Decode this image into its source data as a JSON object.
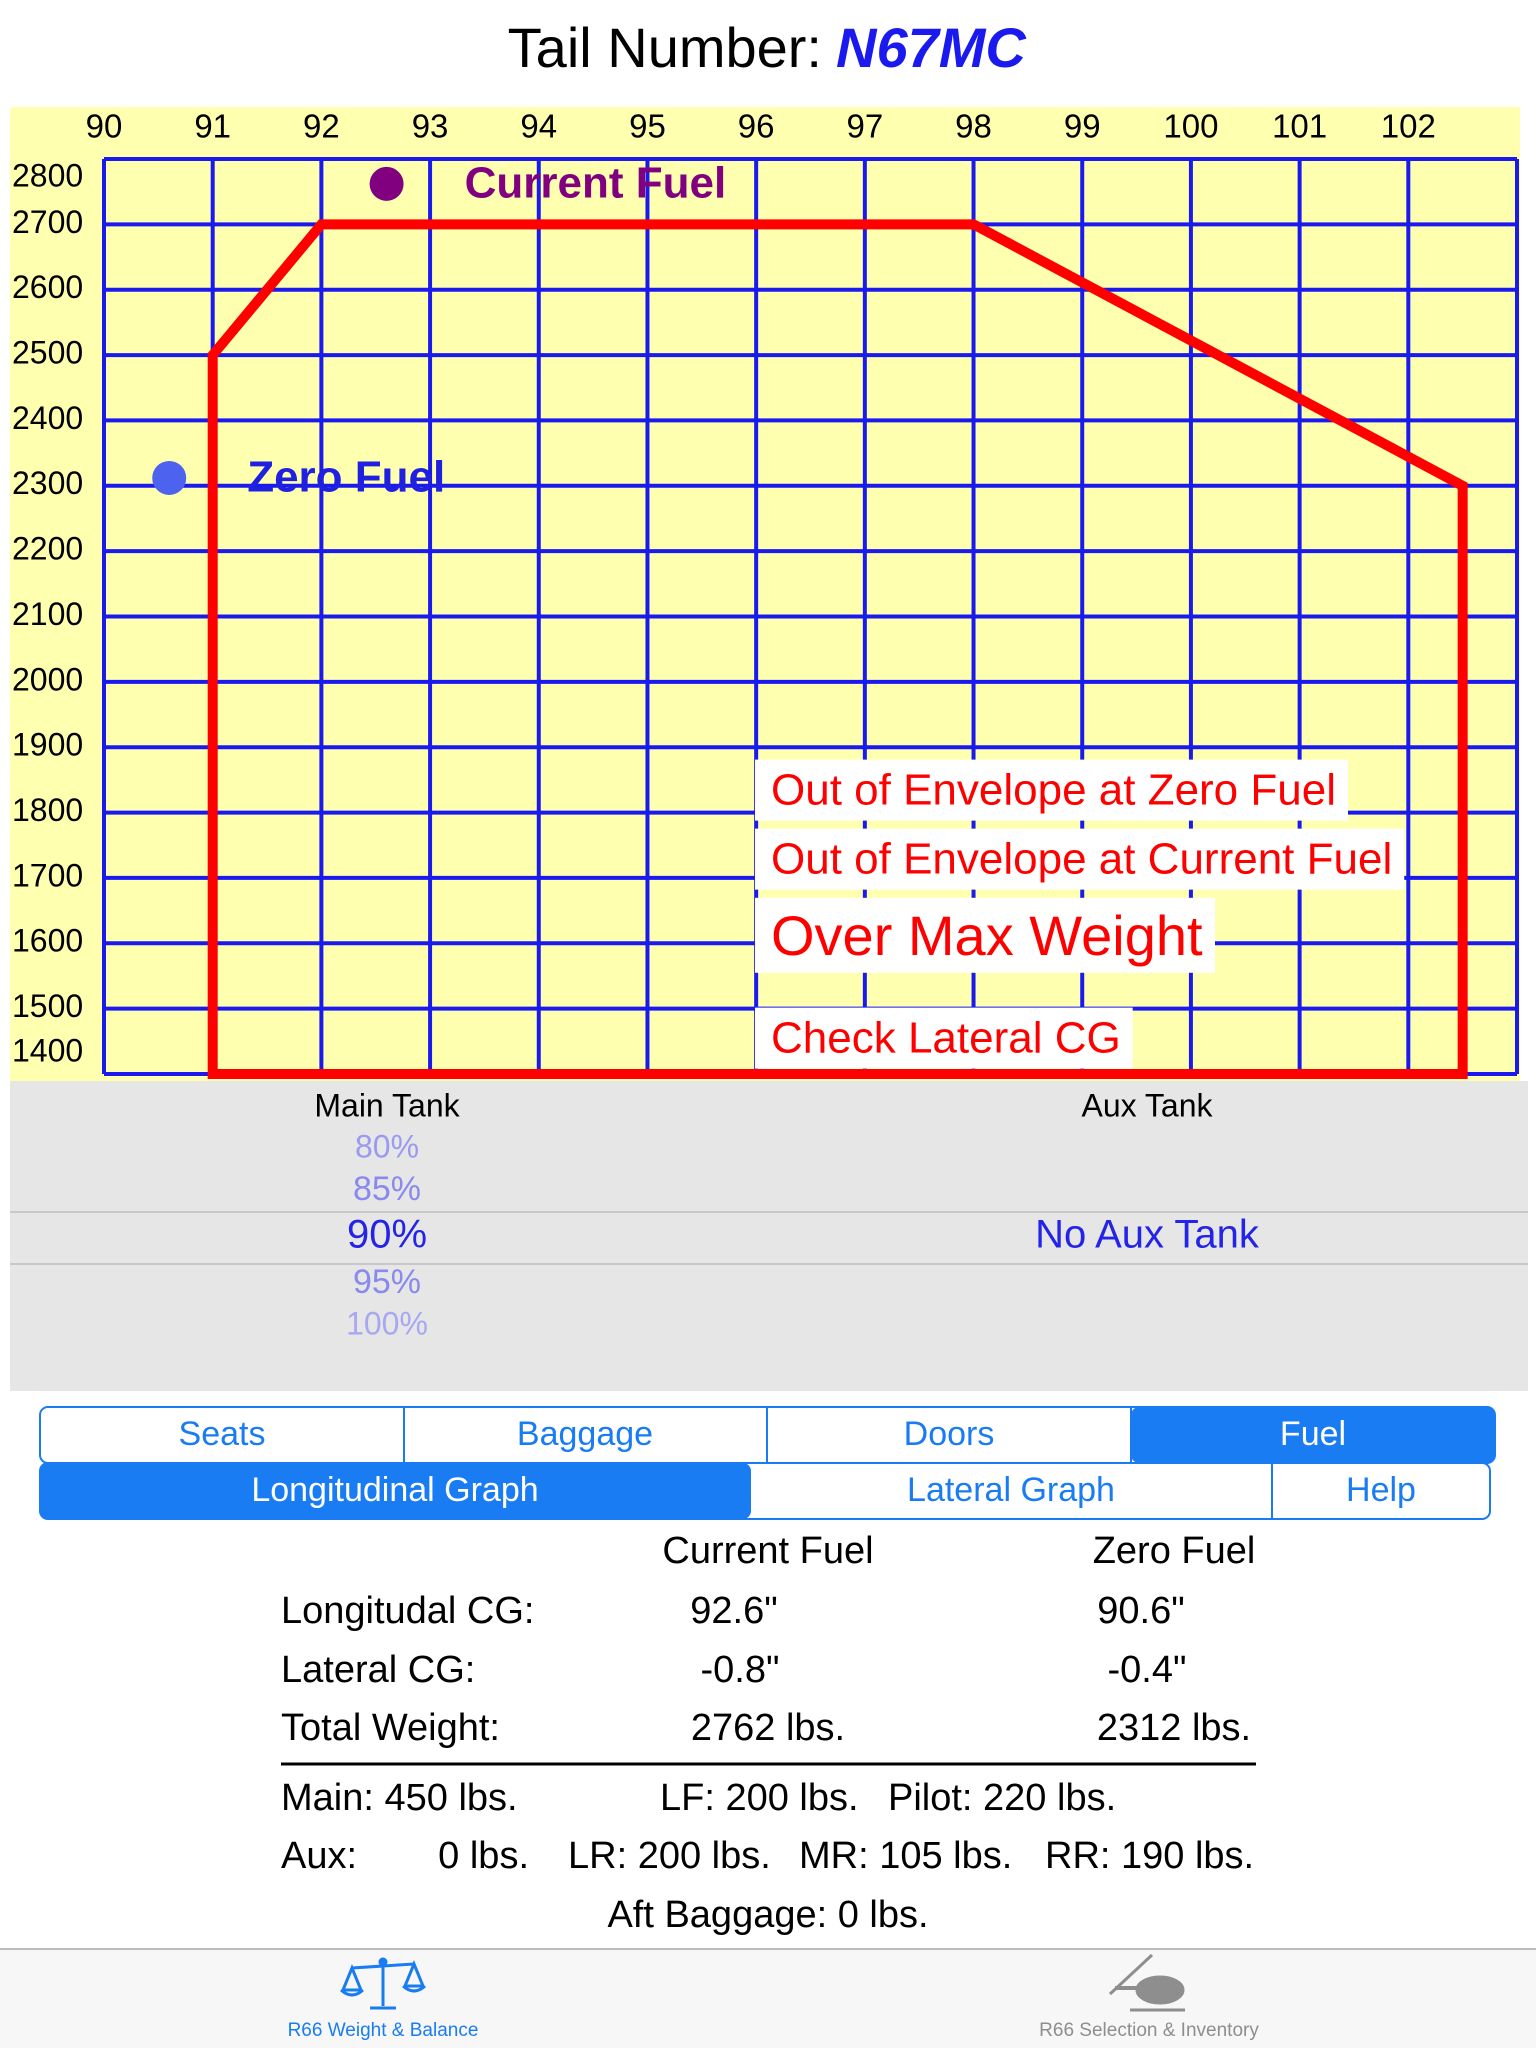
{
  "header": {
    "label": "Tail Number:",
    "tail_number": "N67MC"
  },
  "chart_data": {
    "type": "scatter",
    "xlim": [
      90,
      103
    ],
    "ylim": [
      1400,
      2800
    ],
    "xticks": [
      90,
      91,
      92,
      93,
      94,
      95,
      96,
      97,
      98,
      99,
      100,
      101,
      102
    ],
    "yticks": [
      1400,
      1500,
      1600,
      1700,
      1800,
      1900,
      2000,
      2100,
      2200,
      2300,
      2400,
      2500,
      2600,
      2700,
      2800
    ],
    "grid": true,
    "grid_color": "#1a1aee",
    "background": "#ffffb0",
    "series": [
      {
        "color": "#ff0000",
        "x": [
          91,
          91,
          92,
          98,
          102.5,
          102.5
        ],
        "y": [
          1400,
          2500,
          2700,
          2700,
          2300,
          1400
        ]
      },
      {
        "name": "Current Fuel",
        "color": "#800080",
        "x": [
          92.6
        ],
        "y": [
          2762
        ]
      },
      {
        "name": "Zero Fuel",
        "color": "#4d63f0",
        "label_color": "#2020e0",
        "x": [
          90.6
        ],
        "y": [
          2312
        ]
      }
    ],
    "annotations": [
      "Out of Envelope at Zero Fuel",
      "Out of Envelope at Current Fuel",
      "Over Max Weight",
      "Check Lateral CG"
    ]
  },
  "fuel_picker": {
    "main_title": "Main Tank",
    "aux_title": "Aux Tank",
    "main_options": [
      "80%",
      "85%",
      "90%",
      "95%",
      "100%"
    ],
    "aux_option": "No Aux Tank"
  },
  "tabs": {
    "row1": [
      "Seats",
      "Baggage",
      "Doors",
      "Fuel"
    ],
    "row2": [
      "Longitudinal Graph",
      "Lateral Graph",
      "Help"
    ]
  },
  "results": {
    "columns": [
      "Current Fuel",
      "Zero Fuel"
    ],
    "rows": [
      {
        "label": "Longitudal CG:",
        "current": "92.6\"",
        "zero": "90.6\""
      },
      {
        "label": "Lateral CG:",
        "current": "-0.8\"",
        "zero": "-0.4\""
      },
      {
        "label": "Total Weight:",
        "current": "2762 lbs.",
        "zero": "2312 lbs."
      }
    ]
  },
  "summary": [
    [
      "Main: 450 lbs.",
      "LF: 200 lbs.",
      "Pilot: 220 lbs."
    ],
    [
      "Aux:",
      "0 lbs.",
      "LR: 200 lbs.",
      "MR: 105 lbs.",
      "RR: 190 lbs."
    ],
    [
      "Aft Baggage: 0 lbs."
    ]
  ],
  "tab_bar": [
    "R66 Weight & Balance",
    "R66 Selection & Inventory"
  ]
}
